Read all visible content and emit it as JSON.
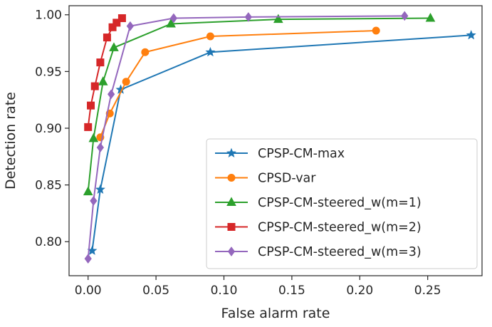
{
  "chart_data": {
    "type": "line",
    "title": "",
    "xlabel": "False alarm rate",
    "ylabel": "Detection rate",
    "xlim": [
      -0.014,
      0.29
    ],
    "ylim": [
      0.77,
      1.008
    ],
    "xticks": [
      0.0,
      0.05,
      0.1,
      0.15,
      0.2,
      0.25
    ],
    "xtick_labels": [
      "0.00",
      "0.05",
      "0.10",
      "0.15",
      "0.20",
      "0.25"
    ],
    "yticks": [
      0.8,
      0.85,
      0.9,
      0.95,
      1.0
    ],
    "ytick_labels": [
      "0.80",
      "0.85",
      "0.90",
      "0.95",
      "1.00"
    ],
    "grid": false,
    "legend_position": "bottom-right",
    "series": [
      {
        "name": "CPSP-CM-max",
        "color": "#1f77b4",
        "marker": "star",
        "x": [
          0.003,
          0.009,
          0.024,
          0.09,
          0.282
        ],
        "y": [
          0.792,
          0.846,
          0.934,
          0.967,
          0.982
        ]
      },
      {
        "name": "CPSD-var",
        "color": "#ff7f0e",
        "marker": "circle",
        "x": [
          0.009,
          0.016,
          0.028,
          0.042,
          0.09,
          0.212
        ],
        "y": [
          0.892,
          0.913,
          0.941,
          0.967,
          0.981,
          0.986
        ]
      },
      {
        "name": "CPSP-CM-steered_w(m=1)",
        "color": "#2ca02c",
        "marker": "triangle",
        "x": [
          0.0,
          0.004,
          0.011,
          0.019,
          0.061,
          0.14,
          0.252
        ],
        "y": [
          0.844,
          0.891,
          0.941,
          0.971,
          0.992,
          0.996,
          0.997
        ]
      },
      {
        "name": "CPSP-CM-steered_w(m=2)",
        "color": "#d62728",
        "marker": "square",
        "x": [
          0.0,
          0.002,
          0.005,
          0.009,
          0.014,
          0.018,
          0.021,
          0.025
        ],
        "y": [
          0.901,
          0.92,
          0.937,
          0.958,
          0.98,
          0.989,
          0.993,
          0.997
        ]
      },
      {
        "name": "CPSP-CM-steered_w(m=3)",
        "color": "#9467bd",
        "marker": "diamond",
        "x": [
          0.0,
          0.004,
          0.009,
          0.017,
          0.031,
          0.063,
          0.118,
          0.233
        ],
        "y": [
          0.785,
          0.836,
          0.883,
          0.93,
          0.99,
          0.997,
          0.998,
          0.999
        ]
      }
    ]
  }
}
